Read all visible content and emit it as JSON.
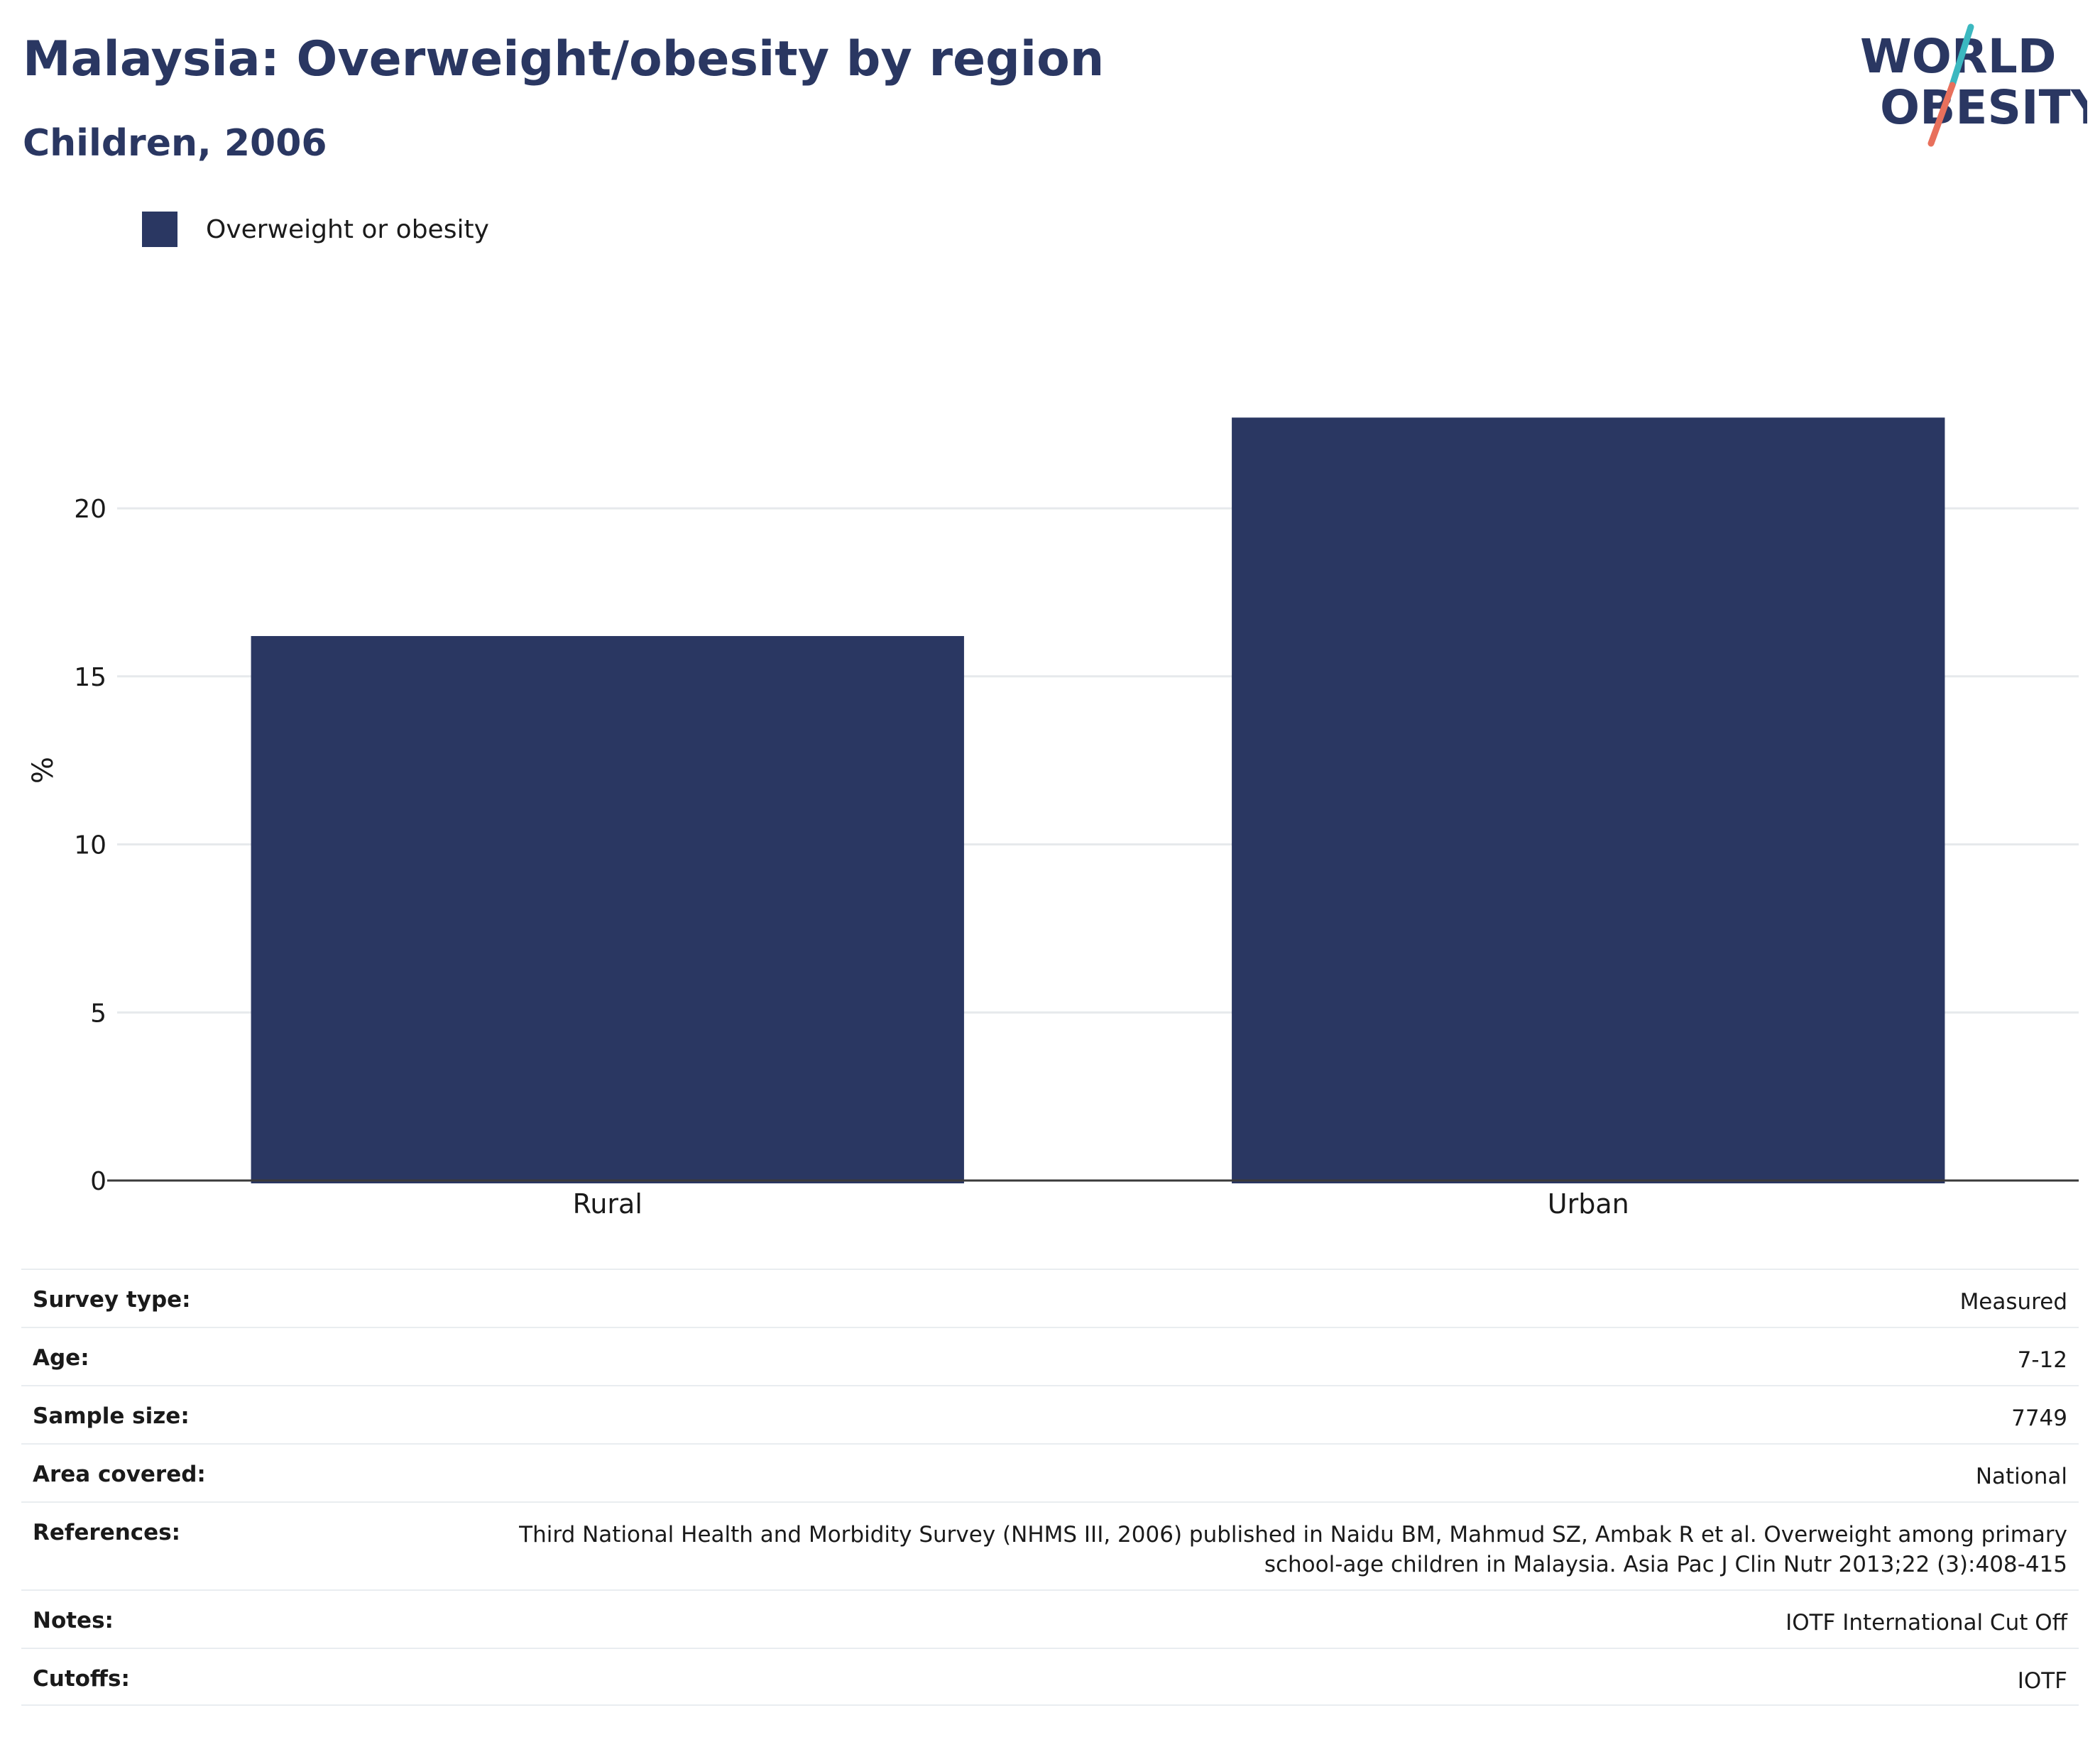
{
  "header": {
    "title": "Malaysia: Overweight/obesity by region",
    "subtitle": "Children, 2006"
  },
  "logo": {
    "line1": "WORLD",
    "line2": "OBESITY",
    "text_color": "#2a3762",
    "accent_teal": "#3bb8c0",
    "accent_coral": "#e8705c"
  },
  "chart_data": {
    "type": "bar",
    "categories": [
      "Rural",
      "Urban"
    ],
    "series": [
      {
        "name": "Overweight or obesity",
        "values": [
          16.2,
          22.7
        ],
        "color": "#2a3762"
      }
    ],
    "ylabel": "%",
    "ylim": [
      0,
      26
    ],
    "yticks": [
      0,
      5,
      10,
      15,
      20
    ],
    "grid": true,
    "legend_position": "top-left"
  },
  "info": [
    {
      "label": "Survey type:",
      "value": "Measured"
    },
    {
      "label": "Age:",
      "value": "7-12"
    },
    {
      "label": "Sample size:",
      "value": "7749"
    },
    {
      "label": "Area covered:",
      "value": "National"
    },
    {
      "label": "References:",
      "value": "Third National Health and Morbidity Survey (NHMS III, 2006) published in Naidu BM, Mahmud SZ, Ambak R et al. Overweight among primary school-age children in Malaysia. Asia Pac J Clin Nutr 2013;22 (3):408-415"
    },
    {
      "label": "Notes:",
      "value": "IOTF International Cut Off"
    },
    {
      "label": "Cutoffs:",
      "value": "IOTF"
    }
  ]
}
